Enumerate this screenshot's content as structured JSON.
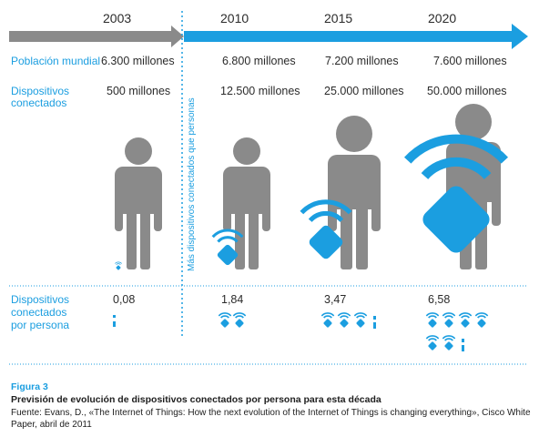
{
  "colors": {
    "accent": "#1b9ee0",
    "gray": "#8a8a8a",
    "text": "#2b2b2b"
  },
  "years": [
    "2003",
    "2010",
    "2015",
    "2020"
  ],
  "rows": {
    "population_label": "Población mundial",
    "devices_label_line1": "Dispositivos",
    "devices_label_line2": "conectados",
    "per_person_label_line1": "Dispositivos",
    "per_person_label_line2": "conectados",
    "per_person_label_line3": "por persona"
  },
  "population": [
    "6.300 millones",
    "6.800 millones",
    "7.200 millones",
    "7.600 millones"
  ],
  "devices": [
    "500 millones",
    "12.500 millones",
    "25.000 millones",
    "50.000 millones"
  ],
  "per_person": [
    "0,08",
    "1,84",
    "3,47",
    "6,58"
  ],
  "divider_text": "Más dispositivos conectados que personas",
  "icons": {
    "person": "person-icon",
    "device": "wifi-device-icon"
  },
  "figure": {
    "title": "Figura 3",
    "subtitle": "Previsión de evolución de dispositivos conectados por persona para esta década",
    "source": "Fuente: Evans, D., «The Internet of Things: How the next evolution of the Internet of Things is changing everything», Cisco White Paper, abril de 2011"
  }
}
